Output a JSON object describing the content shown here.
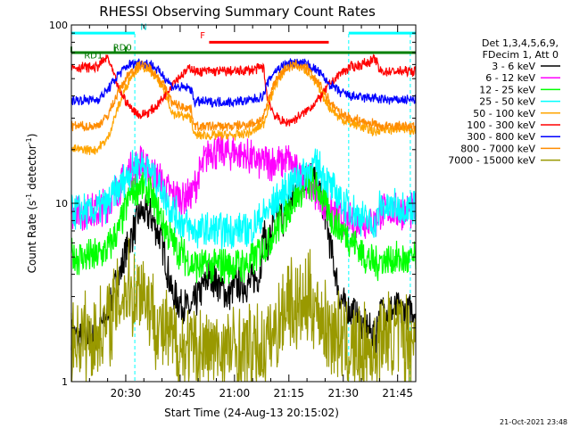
{
  "chart_data": {
    "type": "line",
    "title": "RHESSI Observing Summary Count Rates",
    "xlabel": "Start Time (24-Aug-13 20:15:02)",
    "ylabel_main": "Count Rate (s",
    "ylabel_sup": "-1",
    "ylabel_tail": " detector",
    "ylabel_close": ")",
    "y_scale": "log",
    "ylim": [
      1,
      100
    ],
    "y_tick_labels": [
      "1",
      "10",
      "100"
    ],
    "xlim_minutes": [
      0,
      95
    ],
    "x_tick_labels": [
      "20:30",
      "20:45",
      "21:00",
      "21:15",
      "21:30",
      "21:45"
    ],
    "x_tick_minutes": [
      15,
      30,
      45,
      60,
      75,
      90
    ],
    "legend_header": [
      "Det 1,3,4,5,6,9,",
      "FDecim 1, Att 0"
    ],
    "timestamp": "21-Oct-2021 23:48",
    "series": [
      {
        "name": "3 - 6 keV",
        "color": "#000000",
        "band": "low",
        "x": [
          0,
          7,
          10,
          16,
          19,
          22,
          25,
          28,
          33,
          38,
          41,
          43,
          45,
          49,
          52,
          53,
          54,
          56,
          57,
          59,
          60,
          62,
          64,
          66,
          68,
          69,
          70,
          72,
          74,
          76,
          78,
          81,
          84,
          85,
          88,
          90,
          95
        ],
        "y": [
          1.8,
          1.8,
          2.5,
          6.0,
          9.0,
          8.5,
          6.0,
          3.0,
          2.5,
          4.0,
          3.5,
          3.0,
          3.5,
          3.5,
          4.0,
          7.0,
          5.5,
          8.0,
          9.0,
          8.0,
          10.0,
          12.0,
          13.5,
          14.0,
          13.0,
          11.0,
          9.0,
          5.0,
          3.0,
          2.5,
          2.5,
          2.0,
          1.8,
          2.5,
          2.5,
          2.5,
          2.5
        ]
      },
      {
        "name": "6 - 12 keV",
        "color": "#ff00ff",
        "band": "low",
        "x": [
          0,
          7,
          10,
          16,
          19,
          22,
          25,
          28,
          33,
          38,
          41,
          46,
          49,
          52,
          58,
          60,
          62,
          66,
          68,
          70,
          72,
          75,
          78,
          81,
          84,
          85,
          88,
          90,
          95
        ],
        "y": [
          9.0,
          9.0,
          10.0,
          15.0,
          17.0,
          15.0,
          13.0,
          11.0,
          11.0,
          20.0,
          19.0,
          19.5,
          18.0,
          17.0,
          17.0,
          17.5,
          15.0,
          13.0,
          11.0,
          10.0,
          9.0,
          8.0,
          8.0,
          8.0,
          8.0,
          9.0,
          9.0,
          9.0,
          9.0
        ]
      },
      {
        "name": "12 - 25 keV",
        "color": "#00ff00",
        "band": "low",
        "x": [
          0,
          7,
          10,
          13,
          16,
          19,
          22,
          25,
          28,
          33,
          38,
          41,
          45,
          49,
          52,
          54,
          58,
          62,
          66,
          68,
          70,
          72,
          75,
          78,
          81,
          84,
          85,
          88,
          90,
          95
        ],
        "y": [
          5.0,
          5.0,
          5.5,
          7.0,
          11.0,
          13.0,
          11.0,
          8.0,
          6.0,
          4.5,
          4.5,
          4.5,
          4.5,
          4.5,
          5.5,
          6.0,
          8.0,
          11.0,
          13.0,
          12.0,
          10.0,
          8.0,
          7.0,
          6.0,
          5.0,
          4.5,
          4.8,
          4.8,
          4.8,
          4.8
        ]
      },
      {
        "name": "25 - 50 keV",
        "color": "#00ffff",
        "band": "low",
        "x": [
          0,
          7,
          10,
          13,
          16,
          19,
          22,
          25,
          28,
          33,
          38,
          41,
          45,
          49,
          52,
          54,
          58,
          62,
          66,
          68,
          70,
          72,
          75,
          78,
          81,
          84,
          85,
          88,
          90,
          95
        ],
        "y": [
          9.0,
          9.0,
          10.0,
          12.0,
          15.0,
          17.0,
          15.0,
          12.0,
          9.0,
          7.0,
          7.0,
          7.0,
          7.0,
          7.0,
          8.0,
          9.0,
          11.0,
          14.0,
          16.0,
          16.0,
          14.0,
          12.0,
          10.0,
          9.0,
          8.0,
          7.5,
          9.5,
          9.5,
          9.5,
          9.5
        ]
      },
      {
        "name": "50 - 100 keV",
        "color": "#ffa500",
        "band": "high",
        "x": [
          0,
          7,
          10,
          13,
          16,
          19,
          22,
          25,
          28,
          33,
          34,
          36,
          41,
          45,
          50,
          53,
          54,
          56,
          59,
          62,
          65,
          68,
          71,
          74,
          77,
          80,
          82,
          84,
          85,
          90,
          95
        ],
        "y": [
          20.0,
          20.0,
          23.0,
          35.0,
          50.0,
          60.0,
          55.0,
          45.0,
          32.0,
          30.0,
          24.0,
          24.0,
          24.0,
          24.0,
          25.0,
          28.0,
          33.0,
          45.0,
          57.0,
          60.0,
          55.0,
          45.0,
          35.0,
          30.0,
          28.0,
          27.0,
          26.0,
          25.0,
          26.0,
          26.0,
          26.0
        ]
      },
      {
        "name": "100 - 300 keV",
        "color": "#ff0000",
        "band": "high",
        "x": [
          0,
          7,
          10,
          13,
          16,
          19,
          22,
          25,
          28,
          33,
          34,
          36,
          41,
          45,
          50,
          53,
          54,
          56,
          59,
          62,
          65,
          68,
          71,
          74,
          77,
          80,
          82,
          84,
          85,
          90,
          95
        ],
        "y": [
          58.0,
          58.0,
          66.0,
          44.0,
          35.0,
          31.0,
          33.0,
          38.0,
          48.0,
          58.0,
          55.0,
          55.0,
          55.0,
          55.0,
          56.0,
          58.0,
          40.0,
          31.0,
          28.0,
          30.0,
          33.0,
          38.0,
          46.0,
          53.0,
          58.0,
          60.0,
          62.0,
          64.0,
          55.0,
          55.0,
          55.0
        ]
      },
      {
        "name": "300 - 800 keV",
        "color": "#0000ff",
        "band": "high",
        "x": [
          0,
          7,
          10,
          13,
          16,
          19,
          22,
          25,
          28,
          33,
          34,
          36,
          41,
          45,
          50,
          53,
          54,
          56,
          59,
          62,
          65,
          68,
          71,
          74,
          77,
          80,
          82,
          84,
          85,
          90,
          95
        ],
        "y": [
          38.0,
          38.0,
          43.0,
          53.0,
          60.0,
          62.0,
          60.0,
          53.0,
          45.0,
          44.0,
          37.0,
          37.0,
          37.0,
          37.0,
          38.0,
          40.0,
          47.0,
          55.0,
          60.0,
          62.0,
          60.0,
          55.0,
          47.0,
          42.0,
          40.0,
          39.0,
          39.0,
          39.0,
          38.0,
          38.0,
          38.0
        ]
      },
      {
        "name": "800 - 7000 keV",
        "color": "#ff8c00",
        "band": "high",
        "x": [
          0,
          7,
          10,
          13,
          16,
          19,
          22,
          25,
          28,
          33,
          34,
          36,
          41,
          45,
          50,
          53,
          54,
          56,
          59,
          62,
          65,
          68,
          71,
          74,
          77,
          80,
          82,
          84,
          85,
          90,
          95
        ],
        "y": [
          27.0,
          27.0,
          31.0,
          42.0,
          54.0,
          60.0,
          57.0,
          48.0,
          36.0,
          34.0,
          27.0,
          27.0,
          27.0,
          27.0,
          28.0,
          30.0,
          36.0,
          48.0,
          57.0,
          60.0,
          57.0,
          48.0,
          38.0,
          32.0,
          30.0,
          29.0,
          28.0,
          28.0,
          27.0,
          27.0,
          27.0
        ]
      },
      {
        "name": "7000 - 15000 keV",
        "color": "#999900",
        "band": "vlow",
        "x": [
          0,
          7,
          9,
          12,
          14,
          16,
          17,
          19,
          21,
          22,
          24,
          27,
          30,
          33,
          38,
          41,
          45,
          50,
          53,
          55,
          57,
          58,
          60,
          62,
          64,
          66,
          68,
          70,
          72,
          74,
          76,
          78,
          80,
          82,
          84,
          85,
          88,
          90,
          95
        ],
        "y": [
          1.8,
          1.8,
          2.0,
          2.5,
          3.0,
          3.5,
          3.0,
          3.5,
          3.0,
          2.5,
          2.0,
          1.8,
          1.5,
          1.5,
          1.5,
          1.5,
          1.5,
          1.5,
          1.5,
          1.8,
          2.0,
          2.5,
          3.0,
          2.5,
          2.5,
          3.0,
          2.5,
          2.0,
          2.0,
          1.8,
          1.5,
          1.5,
          1.5,
          1.5,
          1.5,
          1.8,
          1.8,
          1.8,
          1.8
        ]
      }
    ],
    "band_texts": [
      {
        "text": "RD1",
        "color": "#007700"
      },
      {
        "text": "RD0",
        "color": "#007700"
      },
      {
        "text": "N",
        "color": "#00cccc"
      },
      {
        "text": "F",
        "color": "#ff0000"
      }
    ],
    "flag_bars": [
      {
        "name": "attenuator state",
        "color": "#008000",
        "x_start": 0,
        "x_end": 95,
        "level": 70
      },
      {
        "name": "night",
        "color": "#00ffff",
        "x_start": 0,
        "x_end": 17.5,
        "level": 90
      },
      {
        "name": "night",
        "color": "#00ffff",
        "x_start": 76.5,
        "x_end": 95,
        "level": 90
      },
      {
        "name": "flare",
        "color": "#ff0000",
        "x_start": 38,
        "x_end": 71,
        "level": 80
      }
    ],
    "vertical_markers": [
      {
        "color": "#00ffff",
        "x": 17.5
      },
      {
        "color": "#00ffff",
        "x": 76.5
      },
      {
        "color": "#00ffff",
        "x": 93.5
      }
    ]
  }
}
